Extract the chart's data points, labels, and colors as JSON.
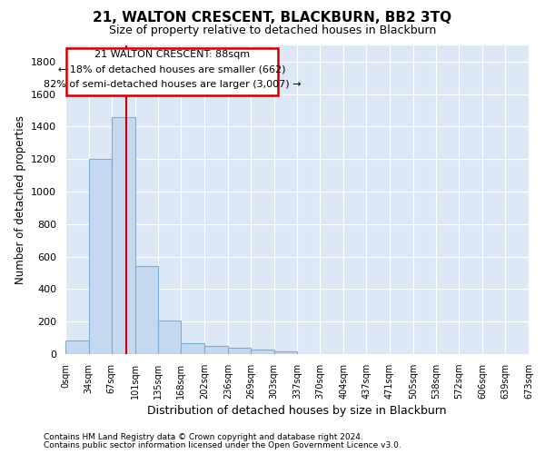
{
  "title": "21, WALTON CRESCENT, BLACKBURN, BB2 3TQ",
  "subtitle": "Size of property relative to detached houses in Blackburn",
  "xlabel": "Distribution of detached houses by size in Blackburn",
  "ylabel": "Number of detached properties",
  "footnote1": "Contains HM Land Registry data © Crown copyright and database right 2024.",
  "footnote2": "Contains public sector information licensed under the Open Government Licence v3.0.",
  "annotation_line1": "21 WALTON CRESCENT: 88sqm",
  "annotation_line2": "← 18% of detached houses are smaller (662)",
  "annotation_line3": "82% of semi-detached houses are larger (3,007) →",
  "property_size": 88,
  "bar_color": "#c5d8f0",
  "bar_edge_color": "#7aafd4",
  "line_color": "#cc0000",
  "plot_bg_color": "#dce8f5",
  "bin_edges": [
    0,
    34,
    67,
    101,
    135,
    168,
    202,
    236,
    269,
    303,
    337,
    370,
    404,
    437,
    471,
    505,
    538,
    572,
    606,
    639,
    673
  ],
  "bin_labels": [
    "0sqm",
    "34sqm",
    "67sqm",
    "101sqm",
    "135sqm",
    "168sqm",
    "202sqm",
    "236sqm",
    "269sqm",
    "303sqm",
    "337sqm",
    "370sqm",
    "404sqm",
    "437sqm",
    "471sqm",
    "505sqm",
    "538sqm",
    "572sqm",
    "606sqm",
    "639sqm",
    "673sqm"
  ],
  "bar_heights": [
    85,
    1200,
    1460,
    540,
    205,
    65,
    50,
    40,
    30,
    15,
    0,
    0,
    0,
    0,
    0,
    0,
    0,
    0,
    0,
    0
  ],
  "ylim": [
    0,
    1900
  ],
  "yticks": [
    0,
    200,
    400,
    600,
    800,
    1000,
    1200,
    1400,
    1600,
    1800
  ],
  "fig_width": 6.0,
  "fig_height": 5.0
}
